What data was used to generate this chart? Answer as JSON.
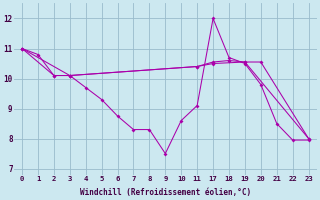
{
  "xlabel": "Windchill (Refroidissement éolien,°C)",
  "bg_color": "#cce8f0",
  "line_color": "#aa00aa",
  "grid_color": "#99bbcc",
  "xtick_labels": [
    "0",
    "1",
    "2",
    "3",
    "4",
    "5",
    "6",
    "7",
    "8",
    "9",
    "10",
    "11",
    "17",
    "18",
    "19",
    "20",
    "21",
    "22",
    "23"
  ],
  "yticks": [
    7,
    8,
    9,
    10,
    11,
    12
  ],
  "ylim": [
    6.8,
    12.5
  ],
  "line1_idx": [
    0,
    1,
    2,
    3,
    4,
    5,
    6,
    7,
    8,
    9,
    10,
    11,
    12,
    13,
    14,
    15,
    16,
    17,
    18
  ],
  "line1_y": [
    11.0,
    10.8,
    10.1,
    10.1,
    9.7,
    9.3,
    8.75,
    8.3,
    8.3,
    7.5,
    8.6,
    9.1,
    12.0,
    10.7,
    10.5,
    9.8,
    8.5,
    7.95,
    7.95
  ],
  "line2_idx": [
    0,
    2,
    3,
    11,
    12,
    13,
    14,
    15,
    18
  ],
  "line2_y": [
    11.0,
    10.1,
    10.1,
    10.4,
    10.55,
    10.6,
    10.55,
    10.55,
    8.0
  ],
  "line3_idx": [
    0,
    3,
    11,
    12,
    14,
    18
  ],
  "line3_y": [
    11.0,
    10.1,
    10.4,
    10.5,
    10.55,
    8.0
  ]
}
